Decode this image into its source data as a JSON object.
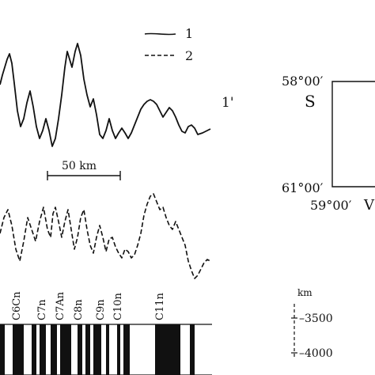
{
  "legend": {
    "items": [
      {
        "key": "1",
        "style": "solid"
      },
      {
        "key": "2",
        "style": "dashed"
      }
    ]
  },
  "profile_label": "1'",
  "scale_bar": {
    "label": "50 km"
  },
  "map_frame": {
    "lat_top": "58°00′",
    "lat_bottom": "61°00′",
    "lon_left": "59°00′",
    "letter_left": "S",
    "letter_bottom_partial": "V"
  },
  "depth_scale": {
    "unit": "km",
    "ticks": [
      "–3500",
      "–4000"
    ]
  },
  "chrons": [
    "C6Cn",
    "C7n",
    "C7An",
    "C8n",
    "C9n",
    "C10n",
    "C11n"
  ],
  "colors": {
    "ink": "#111111",
    "paper": "#ffffff"
  }
}
